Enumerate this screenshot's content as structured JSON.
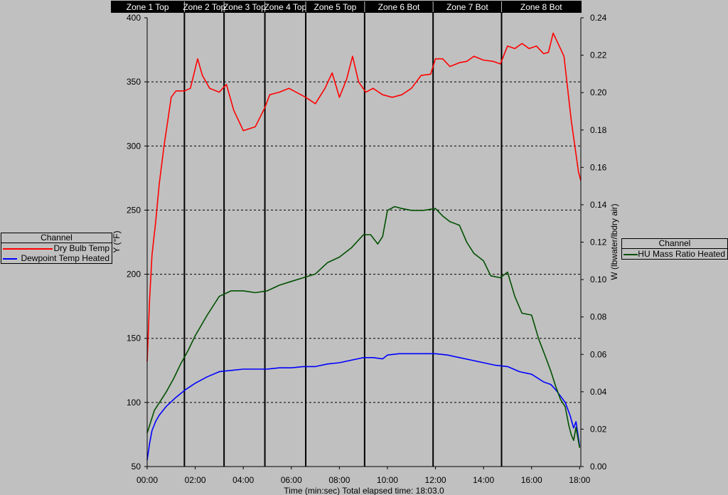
{
  "chart_data": {
    "type": "line",
    "title": "",
    "xlabel": "Time (min:sec) Total elapsed time: 18:03.0",
    "ylabel_left": "Y (°F)",
    "ylabel_right": "W (lbwater/lbdry air)",
    "xlim": [
      0,
      18.05
    ],
    "ylim_left": [
      50,
      400
    ],
    "ylim_right": [
      0,
      0.24
    ],
    "x_ticks": [
      "00:00",
      "02:00",
      "04:00",
      "06:00",
      "08:00",
      "10:00",
      "12:00",
      "14:00",
      "16:00",
      "18:00"
    ],
    "y_left_ticks": [
      "400",
      "350",
      "300",
      "250",
      "200",
      "150",
      "100",
      "50"
    ],
    "y_right_ticks": [
      "0.24",
      "0.22",
      "0.20",
      "0.18",
      "0.16",
      "0.14",
      "0.12",
      "0.10",
      "0.08",
      "0.06",
      "0.04",
      "0.02",
      "0.00"
    ],
    "grid": "horizontal dashed",
    "zones": [
      {
        "label": "Zone 1 Top",
        "start": 0,
        "end": 1.55
      },
      {
        "label": "Zone 2 Top",
        "start": 1.55,
        "end": 3.2
      },
      {
        "label": "Zone 3 Top",
        "start": 3.2,
        "end": 4.9
      },
      {
        "label": "Zone 4 Top",
        "start": 4.9,
        "end": 6.6
      },
      {
        "label": "Zone 5 Top",
        "start": 6.6,
        "end": 9.05
      },
      {
        "label": "Zone 6 Bot",
        "start": 9.05,
        "end": 11.9
      },
      {
        "label": "Zone 7 Bot",
        "start": 11.9,
        "end": 14.75
      },
      {
        "label": "Zone 8 Bot",
        "start": 14.75,
        "end": 18.05
      }
    ],
    "series": [
      {
        "name": "Dry Bulb Temp",
        "axis": "left",
        "color": "#ff0000",
        "x": [
          0,
          0.1,
          0.2,
          0.35,
          0.5,
          0.7,
          0.9,
          1.0,
          1.2,
          1.55,
          1.8,
          2.1,
          2.3,
          2.6,
          3.0,
          3.3,
          3.6,
          4.0,
          4.5,
          4.9,
          5.1,
          5.5,
          5.9,
          6.2,
          6.6,
          7.0,
          7.4,
          7.7,
          8.0,
          8.3,
          8.55,
          8.8,
          9.1,
          9.4,
          9.8,
          10.2,
          10.6,
          11.0,
          11.4,
          11.8,
          12.0,
          12.3,
          12.6,
          13.0,
          13.3,
          13.6,
          14.0,
          14.4,
          14.7,
          15.0,
          15.3,
          15.6,
          15.9,
          16.2,
          16.5,
          16.7,
          16.9,
          17.15,
          17.35,
          17.5,
          17.65,
          17.8,
          17.95,
          18.05
        ],
        "y": [
          132,
          180,
          215,
          240,
          270,
          300,
          325,
          338,
          343,
          343,
          345,
          368,
          355,
          345,
          342,
          348,
          328,
          312,
          315,
          330,
          340,
          342,
          345,
          342,
          338,
          333,
          345,
          357,
          338,
          352,
          370,
          350,
          342,
          345,
          340,
          338,
          340,
          345,
          355,
          356,
          368,
          368,
          362,
          365,
          366,
          370,
          367,
          366,
          364,
          378,
          376,
          380,
          376,
          378,
          372,
          373,
          388,
          378,
          370,
          345,
          320,
          300,
          280,
          273
        ]
      },
      {
        "name": "Dewpoint Temp Heated",
        "axis": "left",
        "color": "#0000ff",
        "x": [
          0,
          0.1,
          0.2,
          0.35,
          0.5,
          0.8,
          1.2,
          1.6,
          2.0,
          2.5,
          3.0,
          3.5,
          4.0,
          4.5,
          5.0,
          5.5,
          6.0,
          6.5,
          7.0,
          7.5,
          8.0,
          8.5,
          9.0,
          9.4,
          9.8,
          10.0,
          10.5,
          11.0,
          11.5,
          12.0,
          12.5,
          13.0,
          13.5,
          14.0,
          14.5,
          15.0,
          15.5,
          16.0,
          16.5,
          16.8,
          17.0,
          17.2,
          17.4,
          17.6,
          17.75,
          17.85,
          18.0
        ],
        "y": [
          55,
          68,
          78,
          85,
          90,
          97,
          104,
          110,
          115,
          120,
          124,
          125,
          126,
          126,
          126,
          127,
          127,
          128,
          128,
          130,
          131,
          133,
          135,
          135,
          134,
          137,
          138,
          138,
          138,
          138,
          137,
          135,
          133,
          131,
          129,
          128,
          124,
          122,
          116,
          114,
          110,
          105,
          100,
          90,
          80,
          85,
          66
        ]
      },
      {
        "name": "HU Mass Ratio Heated",
        "axis": "right",
        "color": "#005000",
        "x": [
          0,
          0.1,
          0.3,
          0.5,
          0.8,
          1.1,
          1.4,
          1.7,
          2.0,
          2.5,
          3.0,
          3.5,
          4.0,
          4.5,
          5.0,
          5.5,
          6.0,
          6.5,
          7.0,
          7.5,
          8.0,
          8.5,
          9.0,
          9.3,
          9.6,
          9.8,
          10.0,
          10.3,
          10.6,
          11.0,
          11.5,
          12.0,
          12.3,
          12.6,
          13.0,
          13.3,
          13.6,
          14.0,
          14.3,
          14.7,
          15.0,
          15.3,
          15.6,
          16.0,
          16.3,
          16.6,
          16.8,
          17.0,
          17.2,
          17.4,
          17.55,
          17.65,
          17.75,
          17.85,
          18.0
        ],
        "y": [
          0.018,
          0.022,
          0.03,
          0.034,
          0.04,
          0.047,
          0.055,
          0.062,
          0.07,
          0.081,
          0.091,
          0.094,
          0.094,
          0.093,
          0.094,
          0.097,
          0.099,
          0.101,
          0.103,
          0.109,
          0.112,
          0.117,
          0.124,
          0.124,
          0.119,
          0.123,
          0.137,
          0.139,
          0.138,
          0.137,
          0.137,
          0.138,
          0.134,
          0.131,
          0.129,
          0.12,
          0.114,
          0.11,
          0.102,
          0.101,
          0.104,
          0.091,
          0.082,
          0.081,
          0.068,
          0.058,
          0.051,
          0.043,
          0.036,
          0.032,
          0.022,
          0.017,
          0.014,
          0.021,
          0.01
        ]
      }
    ],
    "legends": [
      {
        "title": "Channel",
        "entries": [
          "Dry Bulb Temp",
          "Dewpoint Temp Heated"
        ],
        "placement": "left"
      },
      {
        "title": "Channel",
        "entries": [
          "HU Mass Ratio Heated"
        ],
        "placement": "right"
      }
    ]
  }
}
